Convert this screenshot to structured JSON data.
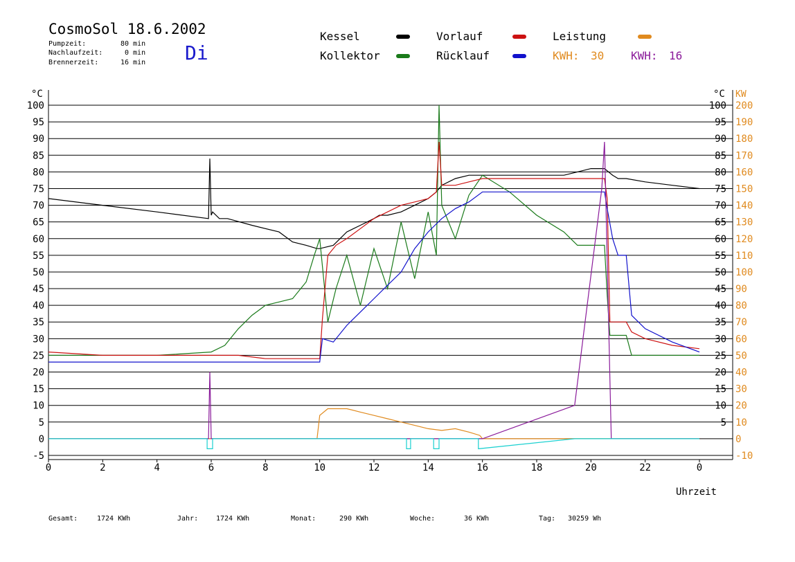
{
  "header": {
    "title": "CosmoSol 18.6.2002",
    "day": "Di",
    "info": [
      {
        "label": "Pumpzeit:",
        "value": "80 min"
      },
      {
        "label": "Nachlaufzeit:",
        "value": "0 min"
      },
      {
        "label": "Brennerzeit:",
        "value": "16 min"
      }
    ]
  },
  "legend": {
    "kessel": "Kessel",
    "kollektor": "Kollektor",
    "vorlauf": "Vorlauf",
    "ruecklauf": "Rücklauf",
    "leistung": "Leistung",
    "kwh1_label": "KWH:",
    "kwh1_value": "30",
    "kwh2_label": "KWH:",
    "kwh2_value": "16"
  },
  "footer": {
    "gesamt_label": "Gesamt:",
    "gesamt_value": "1724 KWh",
    "jahr_label": "Jahr:",
    "jahr_value": "1724 KWh",
    "monat_label": "Monat:",
    "monat_value": "290 KWh",
    "woche_label": "Woche:",
    "woche_value": "36 KWh",
    "tag_label": "Tag:",
    "tag_value": "30259 Wh"
  },
  "colors": {
    "kessel": "#000000",
    "kollektor": "#1a7a1a",
    "vorlauf": "#cc1111",
    "ruecklauf": "#1111cc",
    "leistung": "#e08a1e",
    "kwh2": "#8a1a9a",
    "pump": "#19d0d0"
  },
  "chart_data": {
    "type": "line",
    "title": "CosmoSol 18.6.2002",
    "xlabel": "Uhrzeit",
    "ylabel_left": "°C",
    "ylabel_right": "°C",
    "ylabel_right2": "KW",
    "xlim": [
      0,
      24
    ],
    "ylim": [
      -5,
      100
    ],
    "ylim_right2": [
      -10,
      200
    ],
    "x_ticks": [
      "0",
      "2",
      "4",
      "6",
      "8",
      "10",
      "12",
      "14",
      "16",
      "18",
      "20",
      "22",
      "0"
    ],
    "x_tick_values": [
      0,
      2,
      4,
      6,
      8,
      10,
      12,
      14,
      16,
      18,
      20,
      22,
      24
    ],
    "y_ticks_left": [
      "-5",
      "0",
      "5",
      "10",
      "15",
      "20",
      "25",
      "30",
      "35",
      "40",
      "45",
      "50",
      "55",
      "60",
      "65",
      "70",
      "75",
      "80",
      "85",
      "90",
      "95",
      "100"
    ],
    "y_ticks_right": [
      "5",
      "10",
      "15",
      "20",
      "25",
      "30",
      "35",
      "40",
      "45",
      "50",
      "55",
      "60",
      "65",
      "70",
      "75",
      "80",
      "85",
      "90",
      "95",
      "100"
    ],
    "y_ticks_right2": [
      "-10",
      "0",
      "10",
      "20",
      "30",
      "40",
      "50",
      "60",
      "70",
      "80",
      "90",
      "100",
      "110",
      "120",
      "130",
      "140",
      "150",
      "160",
      "170",
      "180",
      "190",
      "200"
    ],
    "grid": true,
    "series": [
      {
        "name": "Kessel",
        "color": "#000000",
        "x": [
          0,
          2,
          4,
          5.9,
          5.95,
          6.0,
          6.05,
          6.3,
          6.6,
          7.5,
          8.5,
          9.0,
          9.5,
          9.9,
          10.0,
          10.5,
          11.0,
          11.5,
          12.0,
          12.2,
          12.5,
          13.0,
          13.5,
          14.0,
          14.3,
          14.4,
          14.5,
          15.0,
          15.5,
          16.0,
          17.0,
          18.0,
          19.0,
          19.5,
          20.0,
          20.5,
          20.8,
          21.0,
          21.3,
          22.0,
          23.0,
          24.0
        ],
        "y": [
          72,
          70,
          68,
          66,
          84,
          67,
          68,
          66,
          66,
          64,
          62,
          59,
          58,
          57,
          57,
          58,
          62,
          64,
          66,
          67,
          67,
          68,
          70,
          72,
          74,
          75,
          76,
          78,
          79,
          79,
          79,
          79,
          79,
          80,
          81,
          81,
          79,
          78,
          78,
          77,
          76,
          75
        ]
      },
      {
        "name": "Kollektor",
        "color": "#1a7a1a",
        "x": [
          0,
          2,
          4,
          6,
          6.5,
          7.0,
          7.5,
          8.0,
          8.5,
          9.0,
          9.5,
          9.8,
          10.0,
          10.3,
          10.6,
          11.0,
          11.5,
          12.0,
          12.5,
          13.0,
          13.5,
          14.0,
          14.3,
          14.4,
          14.5,
          15.0,
          15.5,
          16.0,
          17.0,
          18.0,
          19.0,
          19.5,
          20.0,
          20.5,
          20.6,
          20.7,
          21.0,
          21.3,
          21.5,
          22.0,
          23.0,
          24.0
        ],
        "y": [
          25,
          25,
          25,
          26,
          28,
          33,
          37,
          40,
          41,
          42,
          47,
          55,
          60,
          35,
          45,
          55,
          40,
          57,
          45,
          65,
          48,
          68,
          55,
          100,
          70,
          60,
          73,
          79,
          74,
          67,
          62,
          58,
          58,
          58,
          43,
          31,
          31,
          31,
          25,
          25,
          25,
          25
        ]
      },
      {
        "name": "Vorlauf",
        "color": "#cc1111",
        "x": [
          0,
          2,
          4,
          6,
          7,
          8,
          9,
          10,
          10.1,
          10.3,
          10.6,
          11.0,
          11.5,
          12.0,
          12.5,
          13.0,
          13.5,
          14.0,
          14.3,
          14.4,
          14.5,
          15.0,
          15.5,
          16.0,
          17.0,
          18.0,
          19.0,
          20.0,
          20.5,
          20.6,
          20.7,
          21.0,
          21.3,
          21.5,
          22.0,
          23.0,
          24.0
        ],
        "y": [
          26,
          25,
          25,
          25,
          25,
          24,
          24,
          24,
          36,
          55,
          58,
          60,
          63,
          66,
          68,
          70,
          71,
          72,
          74,
          89,
          76,
          76,
          77,
          78,
          78,
          78,
          78,
          78,
          78,
          72,
          35,
          35,
          35,
          32,
          30,
          28,
          27
        ]
      },
      {
        "name": "Rücklauf",
        "color": "#1111cc",
        "x": [
          0,
          2,
          4,
          6,
          8,
          10,
          10.1,
          10.5,
          11.0,
          11.5,
          12.0,
          12.5,
          13.0,
          13.5,
          14.0,
          14.5,
          15.0,
          15.5,
          16.0,
          17.0,
          18.0,
          19.0,
          20.0,
          20.5,
          20.6,
          20.8,
          21.0,
          21.3,
          21.5,
          22.0,
          23.0,
          24.0
        ],
        "y": [
          23,
          23,
          23,
          23,
          23,
          23,
          30,
          29,
          34,
          38,
          42,
          46,
          50,
          57,
          62,
          66,
          69,
          71,
          74,
          74,
          74,
          74,
          74,
          74,
          69,
          60,
          55,
          55,
          37,
          33,
          29,
          26
        ]
      },
      {
        "name": "Leistung",
        "color": "#e08a1e",
        "x": [
          0,
          9.9,
          10.0,
          10.3,
          10.6,
          11.0,
          11.5,
          12.0,
          12.5,
          13.0,
          13.5,
          14.0,
          14.5,
          15.0,
          15.5,
          15.9,
          16.0,
          20.0,
          24.0
        ],
        "y": [
          0,
          0,
          14,
          18,
          18,
          18,
          16,
          14,
          12,
          10,
          8,
          6,
          5,
          6,
          4,
          2,
          0,
          0,
          0
        ]
      },
      {
        "name": "KWH: 16",
        "color": "#8a1a9a",
        "x": [
          0,
          5.9,
          5.95,
          6.0,
          6.05,
          16.0,
          19.4,
          20.4,
          20.5,
          20.75,
          24.0
        ],
        "y": [
          0,
          0,
          40,
          0,
          0,
          0,
          20,
          150,
          178,
          0,
          0
        ]
      },
      {
        "name": "Pumpe",
        "color": "#19d0d0",
        "x": [
          0,
          5.85,
          5.85,
          6.05,
          6.05,
          13.2,
          13.2,
          13.35,
          13.35,
          14.2,
          14.2,
          14.4,
          14.4,
          15.85,
          15.85,
          19.4,
          24.0
        ],
        "y": [
          0,
          0,
          -3,
          -3,
          0,
          0,
          -3,
          -3,
          0,
          0,
          -3,
          -3,
          0,
          0,
          -3,
          0,
          0
        ]
      }
    ]
  }
}
